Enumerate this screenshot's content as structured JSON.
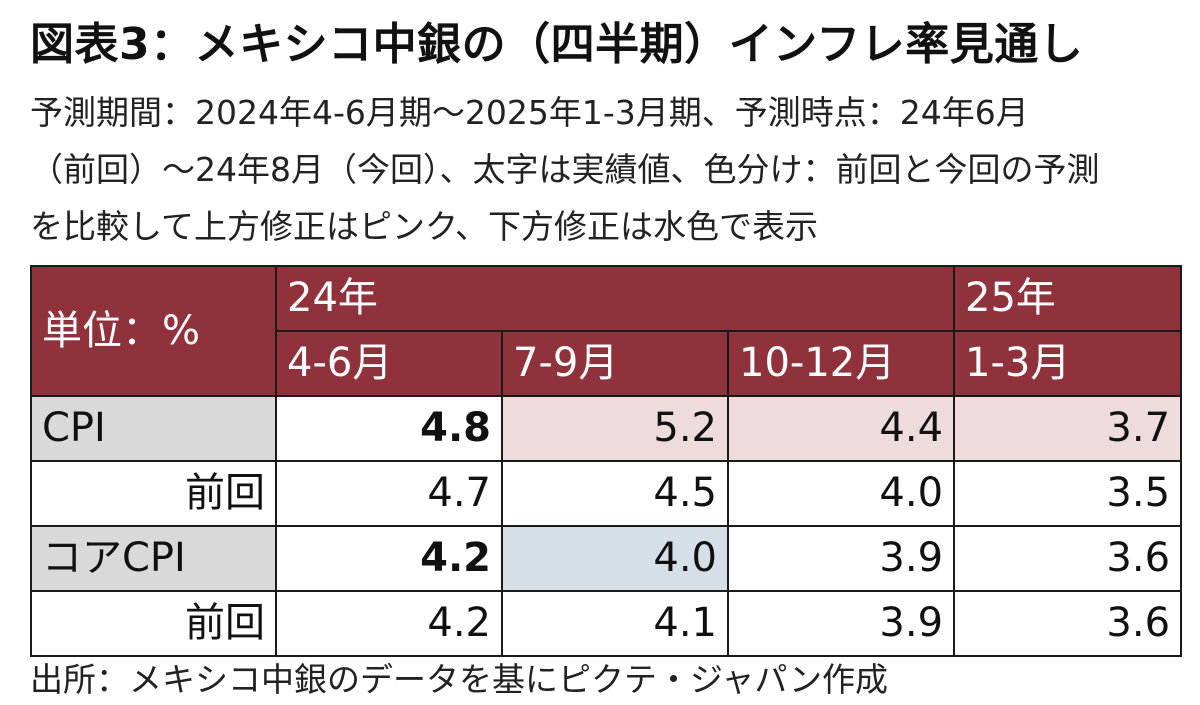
{
  "title": "図表3：メキシコ中銀の（四半期）インフレ率見通し",
  "subtitle_lines": [
    "予測期間：2024年4-6月期〜2025年1-3月期、予測時点：24年6月",
    "（前回）〜24年8月（今回）、太字は実績値、色分け：前回と今回の予測",
    "を比較して上方修正はピンク、下方修正は水色で表示"
  ],
  "table": {
    "unit_label": "単位：%",
    "years": [
      "24年",
      "25年"
    ],
    "quarters": [
      "4-6月",
      "7-9月",
      "10-12月",
      "1-3月"
    ],
    "rows": [
      {
        "label": "CPI",
        "values": [
          "4.8",
          "5.2",
          "4.4",
          "3.7"
        ]
      },
      {
        "label": "前回",
        "values": [
          "4.7",
          "4.5",
          "4.0",
          "3.5"
        ]
      },
      {
        "label": "コアCPI",
        "values": [
          "4.2",
          "4.0",
          "3.9",
          "3.6"
        ]
      },
      {
        "label": "前回",
        "values": [
          "4.2",
          "4.1",
          "3.9",
          "3.6"
        ]
      }
    ]
  },
  "colors": {
    "header_bg": "#8f323c",
    "upward_revision": "#eedcdc",
    "downward_revision": "#d6dfe8",
    "label_bg": "#d9d9d9"
  },
  "source": "出所：メキシコ中銀のデータを基にピクテ・ジャパン作成"
}
